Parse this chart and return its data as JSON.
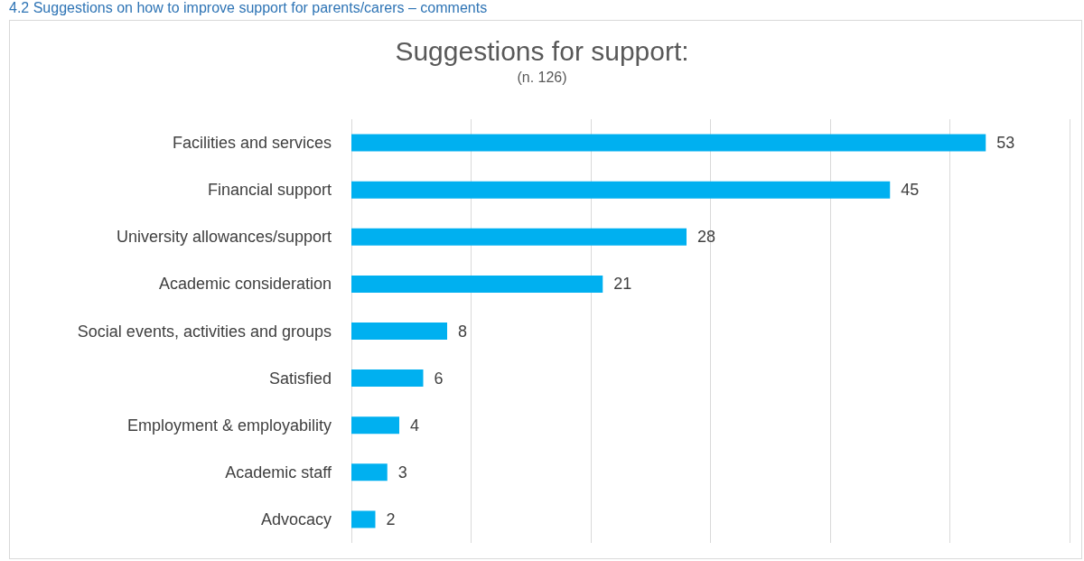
{
  "chart_data": {
    "type": "bar",
    "orientation": "horizontal",
    "title": "Suggestions for support:",
    "subtitle": "(n. 126)",
    "annotations": [
      "4.2 Suggestions on how to improve support for parents/carers – comments"
    ],
    "categories": [
      "Facilities and services",
      "Financial support",
      "University allowances/support",
      "Academic consideration",
      "Social events, activities and groups",
      "Satisfied",
      "Employment & employability",
      "Academic staff",
      "Advocacy"
    ],
    "values": [
      53,
      45,
      28,
      21,
      8,
      6,
      4,
      3,
      2
    ],
    "color": "#00b0f0",
    "data_labels": true,
    "xlim": [
      0,
      60
    ],
    "xticks": [
      {
        "value": 0,
        "label": null
      },
      {
        "value": 10,
        "label": null
      },
      {
        "value": 20,
        "label": null
      },
      {
        "value": 30,
        "label": null
      },
      {
        "value": 40,
        "label": null
      },
      {
        "value": 50,
        "label": null
      },
      {
        "value": 60,
        "label": null
      }
    ],
    "tick_labels": "y",
    "grid": "x"
  }
}
